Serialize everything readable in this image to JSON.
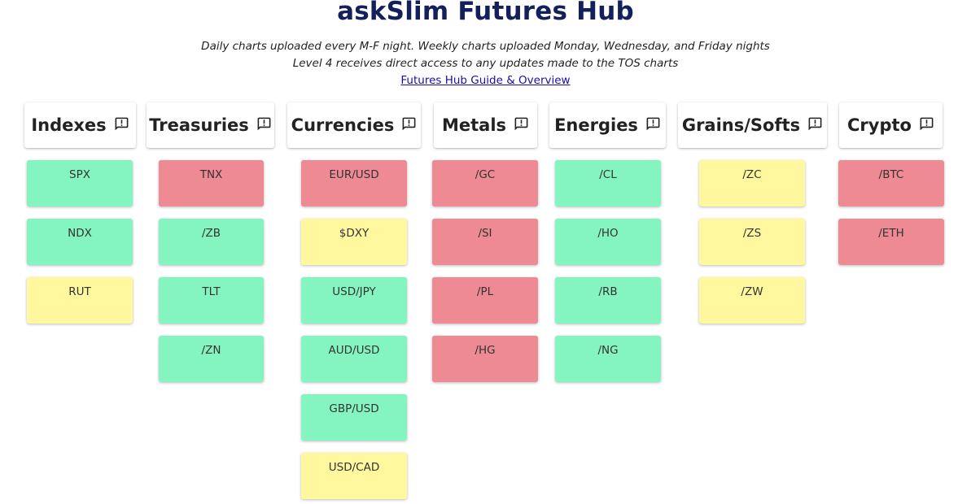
{
  "header": {
    "title": "askSlim Futures Hub",
    "subtitle_1": "Daily charts uploaded every M-F night. Weekly charts uploaded Monday, Wednesday, and Friday nights",
    "subtitle_2": "Level 4 receives direct access to any updates made to the TOS charts",
    "guide_link": "Futures Hub Guide & Overview"
  },
  "colors": {
    "green": "#84f5c0",
    "red": "#ee8a94",
    "yellow": "#fff89e",
    "title": "#14205c",
    "link": "#1a0dab"
  },
  "categories": [
    {
      "name": "Indexes",
      "icon": "feedback-icon",
      "tiles": [
        {
          "label": "SPX",
          "status": "green"
        },
        {
          "label": "NDX",
          "status": "green"
        },
        {
          "label": "RUT",
          "status": "yellow"
        }
      ]
    },
    {
      "name": "Treasuries",
      "icon": "feedback-icon",
      "tiles": [
        {
          "label": "TNX",
          "status": "red"
        },
        {
          "label": "/ZB",
          "status": "green"
        },
        {
          "label": "TLT",
          "status": "green"
        },
        {
          "label": "/ZN",
          "status": "green"
        }
      ]
    },
    {
      "name": "Currencies",
      "icon": "feedback-icon",
      "tiles": [
        {
          "label": "EUR/USD",
          "status": "red"
        },
        {
          "label": "$DXY",
          "status": "yellow"
        },
        {
          "label": "USD/JPY",
          "status": "green"
        },
        {
          "label": "AUD/USD",
          "status": "green"
        },
        {
          "label": "GBP/USD",
          "status": "green"
        },
        {
          "label": "USD/CAD",
          "status": "yellow"
        }
      ]
    },
    {
      "name": "Metals",
      "icon": "feedback-icon",
      "tiles": [
        {
          "label": "/GC",
          "status": "red"
        },
        {
          "label": "/SI",
          "status": "red"
        },
        {
          "label": "/PL",
          "status": "red"
        },
        {
          "label": "/HG",
          "status": "red"
        }
      ]
    },
    {
      "name": "Energies",
      "icon": "feedback-icon",
      "tiles": [
        {
          "label": "/CL",
          "status": "green"
        },
        {
          "label": "/HO",
          "status": "green"
        },
        {
          "label": "/RB",
          "status": "green"
        },
        {
          "label": "/NG",
          "status": "green"
        }
      ]
    },
    {
      "name": "Grains/Softs",
      "icon": "feedback-icon",
      "tiles": [
        {
          "label": "/ZC",
          "status": "yellow"
        },
        {
          "label": "/ZS",
          "status": "yellow"
        },
        {
          "label": "/ZW",
          "status": "yellow"
        }
      ]
    },
    {
      "name": "Crypto",
      "icon": "feedback-icon",
      "tiles": [
        {
          "label": "/BTC",
          "status": "red"
        },
        {
          "label": "/ETH",
          "status": "red"
        }
      ]
    }
  ]
}
